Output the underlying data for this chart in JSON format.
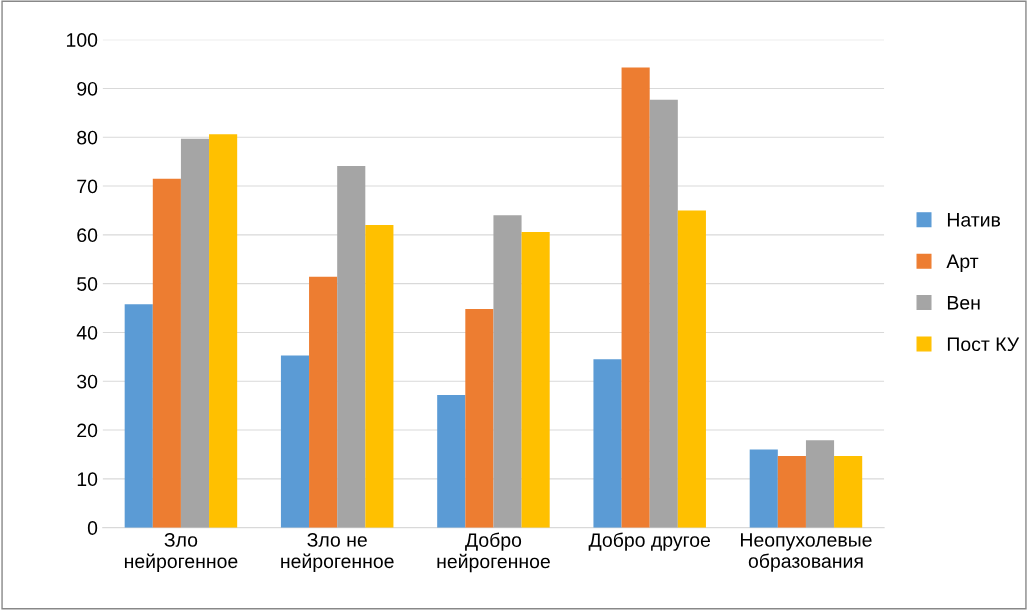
{
  "chart_data": {
    "type": "bar",
    "categories": [
      "Зло\nнейрогенное",
      "Зло не\nнейрогенное",
      "Добро\nнейрогенное",
      "Добро другое",
      "Неопухолевые\nобразования"
    ],
    "series": [
      {
        "name": "Натив",
        "color": "#5b9bd5",
        "values": [
          45.8,
          35.3,
          27.2,
          34.5,
          16.0
        ]
      },
      {
        "name": "Арт",
        "color": "#ed7d31",
        "values": [
          71.5,
          51.4,
          44.8,
          94.3,
          14.7
        ]
      },
      {
        "name": "Вен",
        "color": "#a5a5a5",
        "values": [
          79.7,
          74.1,
          64.0,
          87.7,
          17.9
        ]
      },
      {
        "name": "Пост КУ",
        "color": "#ffc000",
        "values": [
          80.6,
          62.0,
          60.6,
          65.0,
          14.7
        ]
      }
    ],
    "ylim": [
      0,
      100
    ],
    "yticks": [
      0,
      10,
      20,
      30,
      40,
      50,
      60,
      70,
      80,
      90,
      100
    ],
    "grid": "y",
    "legend": "right"
  }
}
